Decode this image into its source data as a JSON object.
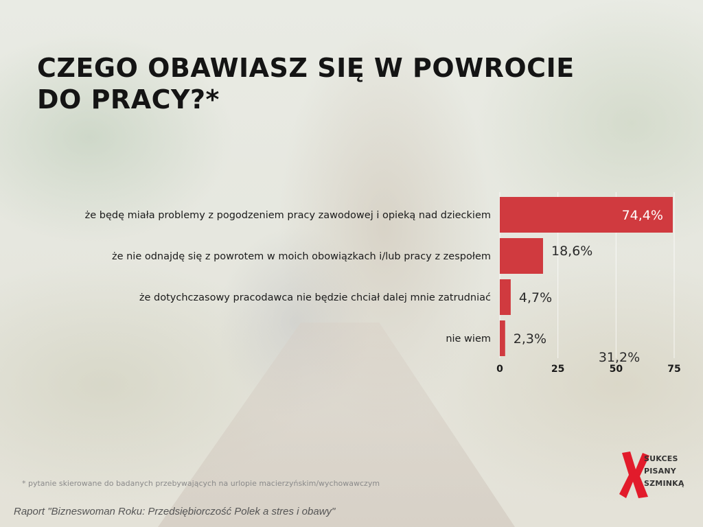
{
  "title": "CZEGO OBAWIASZ SIĘ W POWROCIE DO PRACY?*",
  "footnote": "* pytanie skierowane do badanych  przebywających na urlopie macierzyńskim/wychowawczym",
  "source": "Raport \"Bizneswoman Roku: Przedsiębiorczość Polek a stres i obawy\"",
  "logo": {
    "line1": "SUKCES",
    "line2": "PISANY",
    "line3": "SZMINKĄ"
  },
  "colors": {
    "bar": "#d03a3f",
    "title": "#141414"
  },
  "chart_data": {
    "type": "bar",
    "orientation": "horizontal",
    "categories": [
      "że będę miała problemy z pogodzeniem pracy zawodowej i opieką nad dzieckiem",
      "że nie odnajdę się z powrotem w moich obowiązkach i/lub pracy z zespołem",
      "że dotychczasowy pracodawca nie będzie chciał dalej mnie zatrudniać",
      "nie wiem"
    ],
    "values": [
      74.4,
      18.6,
      4.7,
      2.3
    ],
    "value_labels": [
      "74,4%",
      "18,6%",
      "4,7%",
      "2,3%"
    ],
    "xlim": [
      0,
      75
    ],
    "xticks": [
      0,
      25,
      50,
      75
    ],
    "grid": true,
    "annotation": "31,2%"
  }
}
